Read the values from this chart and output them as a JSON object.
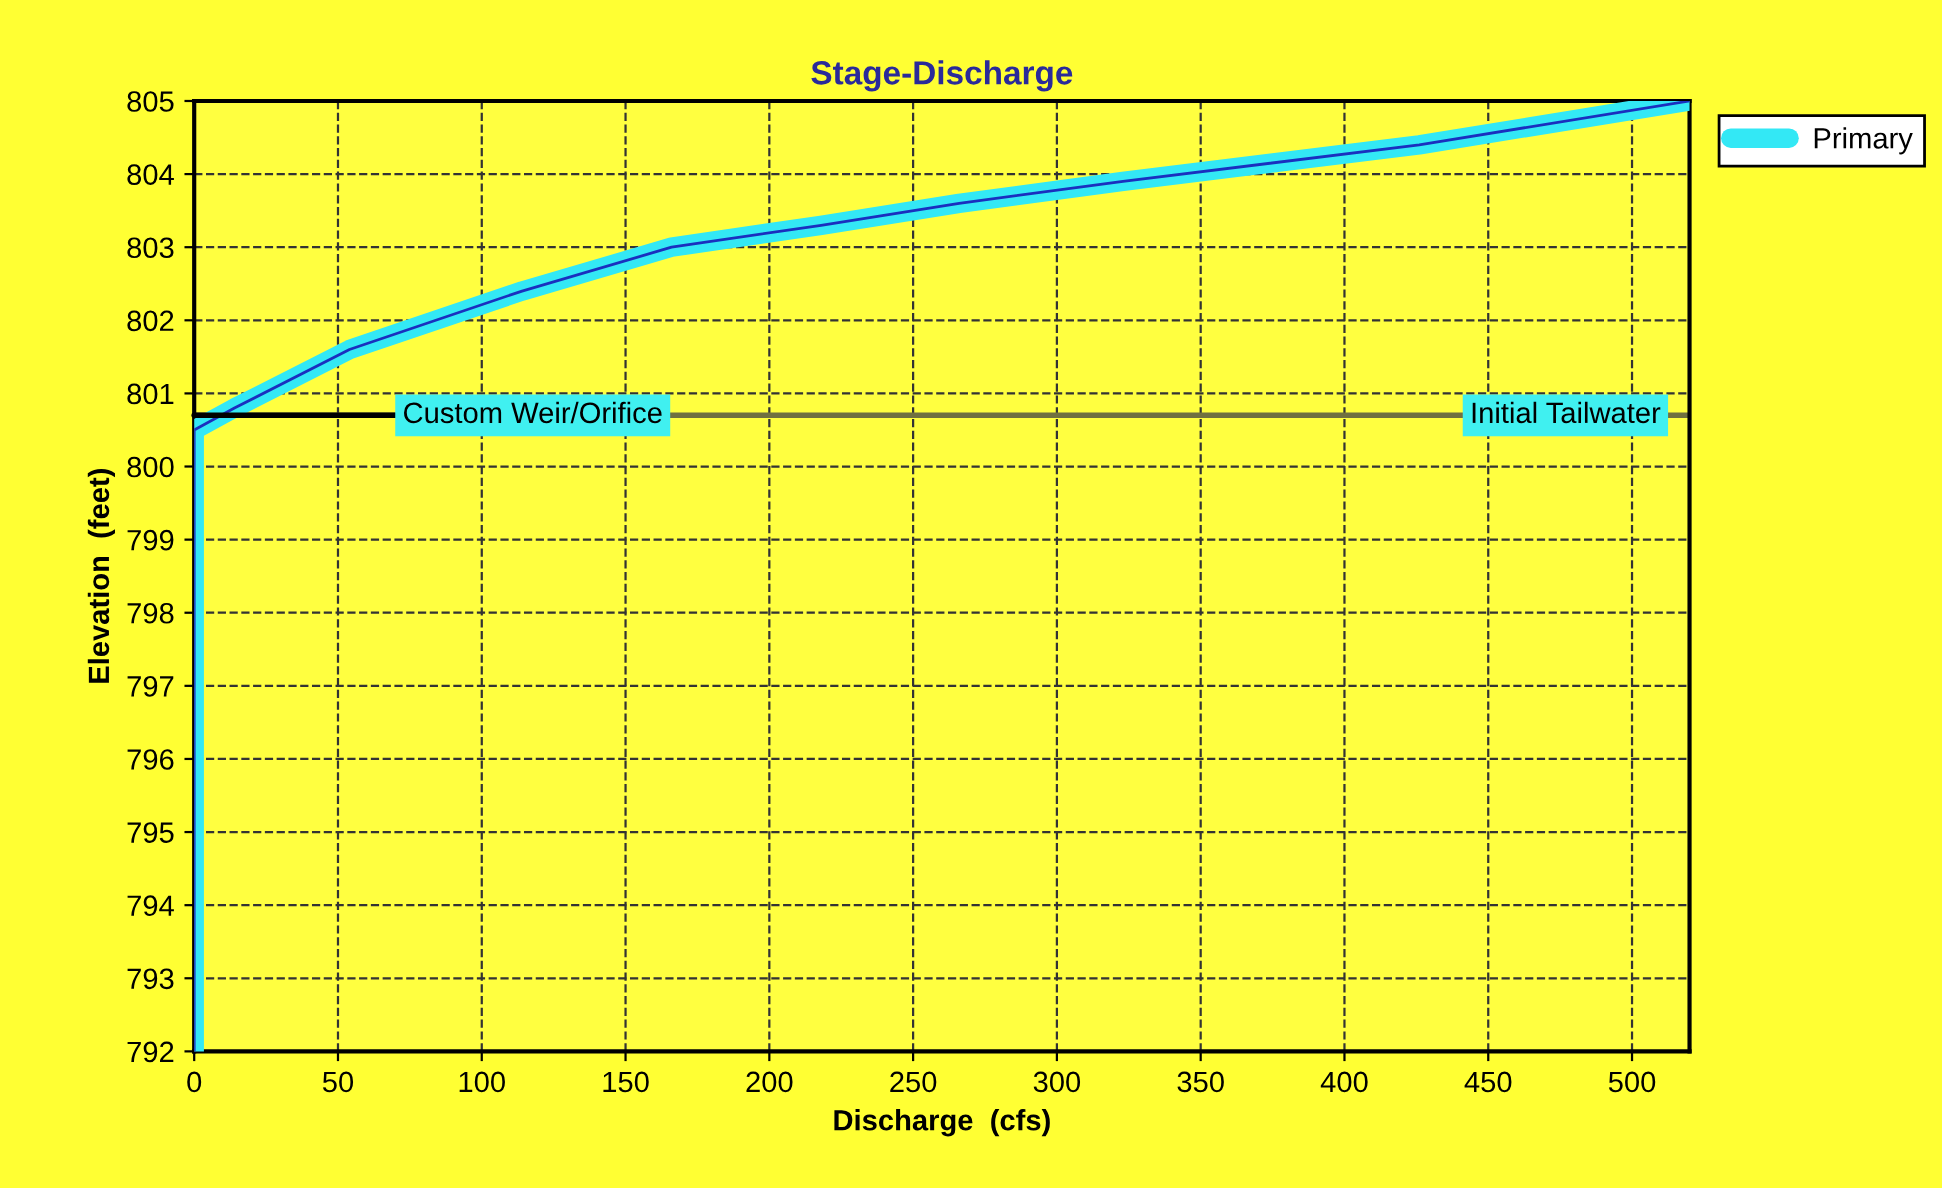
{
  "chart_data": {
    "type": "line",
    "title": "Stage-Discharge",
    "xlabel": "Discharge  (cfs)",
    "ylabel": "Elevation  (feet)",
    "series": [
      {
        "name": "Primary",
        "color": "#33e8f5",
        "x": [
          0,
          0,
          14,
          54,
          114,
          166,
          218,
          266,
          323,
          426,
          520
        ],
        "values": [
          792,
          800.5,
          800.8,
          801.6,
          802.4,
          803.0,
          803.3,
          803.6,
          803.9,
          804.4,
          805.0
        ]
      }
    ],
    "xlim": [
      0,
      520
    ],
    "xticks": [
      0,
      50,
      100,
      150,
      200,
      250,
      300,
      350,
      400,
      450,
      500
    ],
    "ylim": [
      792,
      805
    ],
    "yticks": [
      792,
      793,
      794,
      795,
      796,
      797,
      798,
      799,
      800,
      801,
      802,
      803,
      804,
      805
    ],
    "ref_lines": [
      {
        "axis": "y",
        "value": 800.7,
        "label": "Initial Tailwater",
        "color": "#707040"
      }
    ],
    "annotations": [
      {
        "text": "Custom Weir/Orifice",
        "x": 0,
        "y": 800.7
      }
    ],
    "grid": true,
    "legend": "top right",
    "marker": "none",
    "line_style": "solid"
  }
}
